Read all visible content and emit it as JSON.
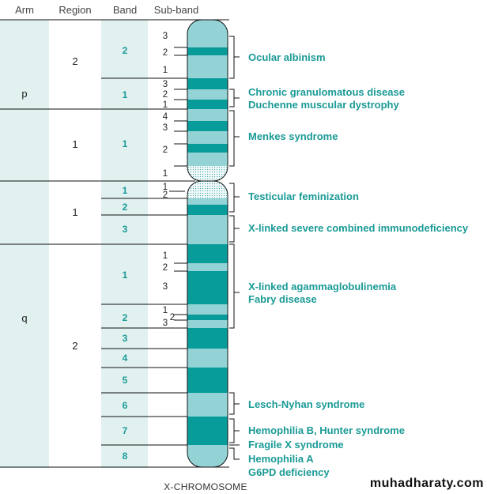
{
  "headers": {
    "arm": "Arm",
    "region": "Region",
    "band": "Band",
    "subband": "Sub-band"
  },
  "arms": [
    {
      "label": "p"
    },
    {
      "label": "q"
    }
  ],
  "regions": [
    {
      "arm": "p",
      "label": "2"
    },
    {
      "arm": "p",
      "label": "1"
    },
    {
      "arm": "q",
      "label": "1"
    },
    {
      "arm": "q",
      "label": "2"
    }
  ],
  "bands": [
    {
      "arm": "p",
      "region": "2",
      "label": "2"
    },
    {
      "arm": "p",
      "region": "2",
      "label": "1"
    },
    {
      "arm": "p",
      "region": "1",
      "label": "1"
    },
    {
      "arm": "q",
      "region": "1",
      "label": "1"
    },
    {
      "arm": "q",
      "region": "1",
      "label": "2"
    },
    {
      "arm": "q",
      "region": "1",
      "label": "3"
    },
    {
      "arm": "q",
      "region": "2",
      "label": "1"
    },
    {
      "arm": "q",
      "region": "2",
      "label": "2"
    },
    {
      "arm": "q",
      "region": "2",
      "label": "3"
    },
    {
      "arm": "q",
      "region": "2",
      "label": "4"
    },
    {
      "arm": "q",
      "region": "2",
      "label": "5"
    },
    {
      "arm": "q",
      "region": "2",
      "label": "6"
    },
    {
      "arm": "q",
      "region": "2",
      "label": "7"
    },
    {
      "arm": "q",
      "region": "2",
      "label": "8"
    }
  ],
  "subbands": [
    "3",
    "2",
    "1",
    "3",
    "2",
    "1",
    "4",
    "3",
    "2",
    "1",
    "1",
    "2",
    "1",
    "2",
    "3",
    "1",
    "2",
    "3"
  ],
  "diseases": [
    "Ocular albinism",
    "Chronic granulomatous disease",
    "Duchenne muscular dystrophy",
    "Menkes syndrome",
    "Testicular feminization",
    "X-linked severe combined immunodeficiency",
    "X-linked agammaglobulinemia",
    "Fabry disease",
    "Lesch-Nyhan syndrome",
    "Hemophilia B, Hunter syndrome",
    "Fragile X syndrome",
    "Hemophilia A",
    "G6PD deficiency"
  ],
  "caption": "X-CHROMOSOME",
  "watermark": "muhadharaty.com",
  "colors": {
    "column_shade": "#e0f1ef",
    "chromosome_light": "#93d3d6",
    "chromosome_dark": "#079c99",
    "teal_text": "#1a9a96",
    "line": "#111111"
  }
}
